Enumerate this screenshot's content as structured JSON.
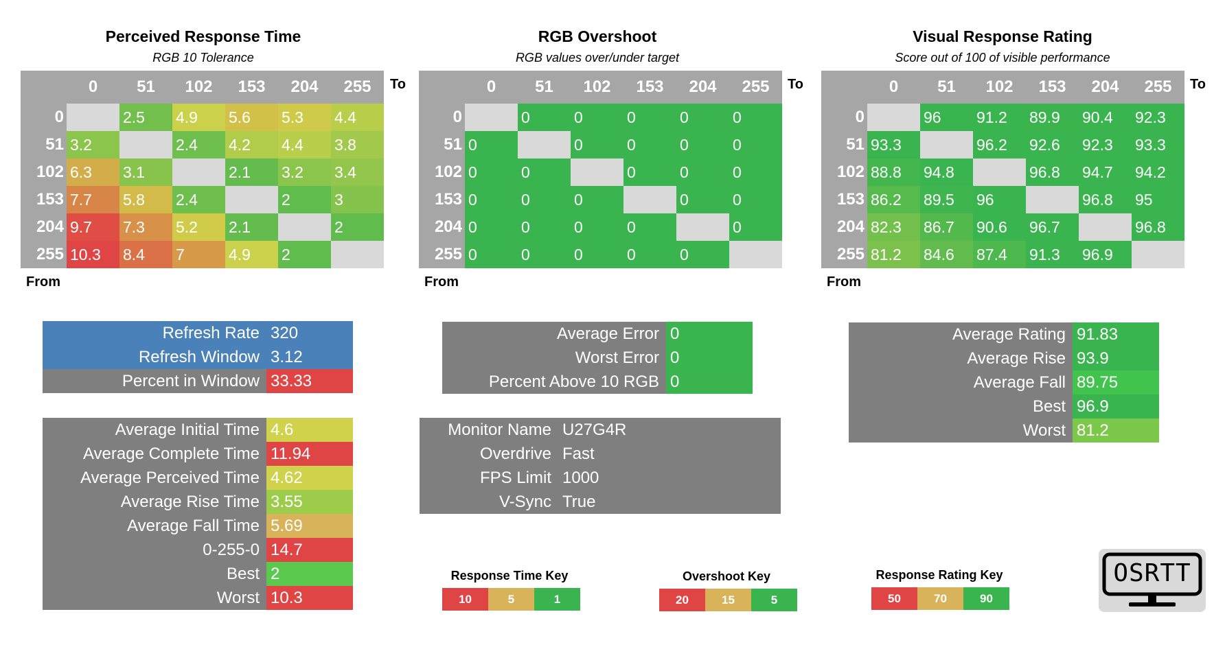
{
  "colors": {
    "red": "#e04545",
    "yellow": "#cfd24a",
    "orange_yellow": "#d8b35a",
    "green": "#3ab44e",
    "gray": "#7f7f7f",
    "blue": "#4a81b8"
  },
  "heatmaps": [
    {
      "id": "prt",
      "title": "Perceived Response Time",
      "subtitle": "RGB 10 Tolerance",
      "to_label": "To",
      "from_label": "From",
      "columns": [
        "0",
        "51",
        "102",
        "153",
        "204",
        "255"
      ],
      "rows": [
        "0",
        "51",
        "102",
        "153",
        "204",
        "255"
      ],
      "values": [
        [
          null,
          2.5,
          4.9,
          5.6,
          5.3,
          4.4
        ],
        [
          3.2,
          null,
          2.4,
          4.2,
          4.4,
          3.8
        ],
        [
          6.3,
          3.1,
          null,
          2.1,
          3.2,
          3.4
        ],
        [
          7.7,
          5.8,
          2.4,
          null,
          2,
          3
        ],
        [
          9.7,
          7.3,
          5.2,
          2.1,
          null,
          2
        ],
        [
          10.3,
          8.4,
          7,
          4.9,
          2,
          null
        ]
      ],
      "scale": {
        "type": "diverging",
        "best": 1,
        "mid": 5,
        "worst": 10
      }
    },
    {
      "id": "ovs",
      "title": "RGB Overshoot",
      "subtitle": "RGB values over/under target",
      "to_label": "To",
      "from_label": "From",
      "columns": [
        "0",
        "51",
        "102",
        "153",
        "204",
        "255"
      ],
      "rows": [
        "0",
        "51",
        "102",
        "153",
        "204",
        "255"
      ],
      "values": [
        [
          null,
          0,
          0,
          0,
          0,
          0
        ],
        [
          0,
          null,
          0,
          0,
          0,
          0
        ],
        [
          0,
          0,
          null,
          0,
          0,
          0
        ],
        [
          0,
          0,
          0,
          null,
          0,
          0
        ],
        [
          0,
          0,
          0,
          0,
          null,
          0
        ],
        [
          0,
          0,
          0,
          0,
          0,
          null
        ]
      ],
      "scale": {
        "type": "diverging",
        "best": 5,
        "mid": 15,
        "worst": 20
      }
    },
    {
      "id": "vrr",
      "title": "Visual Response Rating",
      "subtitle": "Score out of 100 of visible performance",
      "to_label": "To",
      "from_label": "From",
      "columns": [
        "0",
        "51",
        "102",
        "153",
        "204",
        "255"
      ],
      "rows": [
        "0",
        "51",
        "102",
        "153",
        "204",
        "255"
      ],
      "values": [
        [
          null,
          96,
          91.2,
          89.9,
          90.4,
          92.3
        ],
        [
          93.3,
          null,
          96.2,
          92.6,
          92.3,
          93.3
        ],
        [
          88.8,
          94.8,
          null,
          96.8,
          94.7,
          94.2
        ],
        [
          86.2,
          89.5,
          96,
          null,
          96.8,
          95
        ],
        [
          82.3,
          86.7,
          90.6,
          96.7,
          null,
          96.8
        ],
        [
          81.2,
          84.6,
          87.4,
          91.3,
          96.9,
          null
        ]
      ],
      "scale": {
        "type": "diverging",
        "best": 90,
        "mid": 70,
        "worst": 50
      }
    }
  ],
  "chart_data": [
    {
      "type": "heatmap",
      "title": "Perceived Response Time",
      "subtitle": "RGB 10 Tolerance",
      "xlabel": "To",
      "ylabel": "From",
      "x": [
        "0",
        "51",
        "102",
        "153",
        "204",
        "255"
      ],
      "y": [
        "0",
        "51",
        "102",
        "153",
        "204",
        "255"
      ],
      "values": [
        [
          null,
          2.5,
          4.9,
          5.6,
          5.3,
          4.4
        ],
        [
          3.2,
          null,
          2.4,
          4.2,
          4.4,
          3.8
        ],
        [
          6.3,
          3.1,
          null,
          2.1,
          3.2,
          3.4
        ],
        [
          7.7,
          5.8,
          2.4,
          null,
          2,
          3
        ],
        [
          9.7,
          7.3,
          5.2,
          2.1,
          null,
          2
        ],
        [
          10.3,
          8.4,
          7,
          4.9,
          2,
          null
        ]
      ]
    },
    {
      "type": "heatmap",
      "title": "RGB Overshoot",
      "subtitle": "RGB values over/under target",
      "xlabel": "To",
      "ylabel": "From",
      "x": [
        "0",
        "51",
        "102",
        "153",
        "204",
        "255"
      ],
      "y": [
        "0",
        "51",
        "102",
        "153",
        "204",
        "255"
      ],
      "values": [
        [
          null,
          0,
          0,
          0,
          0,
          0
        ],
        [
          0,
          null,
          0,
          0,
          0,
          0
        ],
        [
          0,
          0,
          null,
          0,
          0,
          0
        ],
        [
          0,
          0,
          0,
          null,
          0,
          0
        ],
        [
          0,
          0,
          0,
          0,
          null,
          0
        ],
        [
          0,
          0,
          0,
          0,
          0,
          null
        ]
      ]
    },
    {
      "type": "heatmap",
      "title": "Visual Response Rating",
      "subtitle": "Score out of 100 of visible performance",
      "xlabel": "To",
      "ylabel": "From",
      "x": [
        "0",
        "51",
        "102",
        "153",
        "204",
        "255"
      ],
      "y": [
        "0",
        "51",
        "102",
        "153",
        "204",
        "255"
      ],
      "values": [
        [
          null,
          96,
          91.2,
          89.9,
          90.4,
          92.3
        ],
        [
          93.3,
          null,
          96.2,
          92.6,
          92.3,
          93.3
        ],
        [
          88.8,
          94.8,
          null,
          96.8,
          94.7,
          94.2
        ],
        [
          86.2,
          89.5,
          96,
          null,
          96.8,
          95
        ],
        [
          82.3,
          86.7,
          90.6,
          96.7,
          null,
          96.8
        ],
        [
          81.2,
          84.6,
          87.4,
          91.3,
          96.9,
          null
        ]
      ]
    }
  ],
  "refresh": [
    {
      "label": "Refresh Rate",
      "value": "320",
      "color": "#4a81b8",
      "value_color": "#4a81b8"
    },
    {
      "label": "Refresh Window",
      "value": "3.12",
      "color": "#4a81b8",
      "value_color": "#4a81b8"
    },
    {
      "label": "Percent in Window",
      "value": "33.33",
      "color": "#7f7f7f",
      "value_color": "#e04545"
    }
  ],
  "times": [
    {
      "label": "Average Initial Time",
      "value": "4.6",
      "value_color": "#cfd24a"
    },
    {
      "label": "Average Complete Time",
      "value": "11.94",
      "value_color": "#e04545"
    },
    {
      "label": "Average Perceived Time",
      "value": "4.62",
      "value_color": "#cfd24a"
    },
    {
      "label": "Average Rise Time",
      "value": "3.55",
      "value_color": "#9ccc4a"
    },
    {
      "label": "Average Fall Time",
      "value": "5.69",
      "value_color": "#d8b35a"
    },
    {
      "label": "0-255-0",
      "value": "14.7",
      "value_color": "#e04545"
    },
    {
      "label": "Best",
      "value": "2",
      "value_color": "#5ac94e"
    },
    {
      "label": "Worst",
      "value": "10.3",
      "value_color": "#e04545"
    }
  ],
  "errors": [
    {
      "label": "Average Error",
      "value": "0",
      "value_color": "#3ab44e"
    },
    {
      "label": "Worst Error",
      "value": "0",
      "value_color": "#3ab44e"
    },
    {
      "label": "Percent Above 10 RGB",
      "value": "0",
      "value_color": "#3ab44e"
    }
  ],
  "monitor": [
    {
      "label": "Monitor Name",
      "value": "U27G4R"
    },
    {
      "label": "Overdrive",
      "value": "Fast"
    },
    {
      "label": "FPS Limit",
      "value": "1000"
    },
    {
      "label": "V-Sync",
      "value": "True"
    }
  ],
  "ratings": [
    {
      "label": "Average Rating",
      "value": "91.83",
      "value_color": "#3ab44e"
    },
    {
      "label": "Average Rise",
      "value": "93.9",
      "value_color": "#3ab44e"
    },
    {
      "label": "Average Fall",
      "value": "89.75",
      "value_color": "#40c44e"
    },
    {
      "label": "Best",
      "value": "96.9",
      "value_color": "#3ab44e"
    },
    {
      "label": "Worst",
      "value": "81.2",
      "value_color": "#7cc84a"
    }
  ],
  "keys": [
    {
      "title": "Response Time Key",
      "items": [
        {
          "label": "10",
          "color": "#e04545"
        },
        {
          "label": "5",
          "color": "#d8b35a"
        },
        {
          "label": "1",
          "color": "#3ab44e"
        }
      ]
    },
    {
      "title": "Overshoot Key",
      "items": [
        {
          "label": "20",
          "color": "#e04545"
        },
        {
          "label": "15",
          "color": "#d8b35a"
        },
        {
          "label": "5",
          "color": "#3ab44e"
        }
      ]
    },
    {
      "title": "Response Rating Key",
      "items": [
        {
          "label": "50",
          "color": "#e04545"
        },
        {
          "label": "70",
          "color": "#d8b35a"
        },
        {
          "label": "90",
          "color": "#3ab44e"
        }
      ]
    }
  ],
  "logo": {
    "text": "OSRTT",
    "icon": "monitor-logo-icon"
  }
}
